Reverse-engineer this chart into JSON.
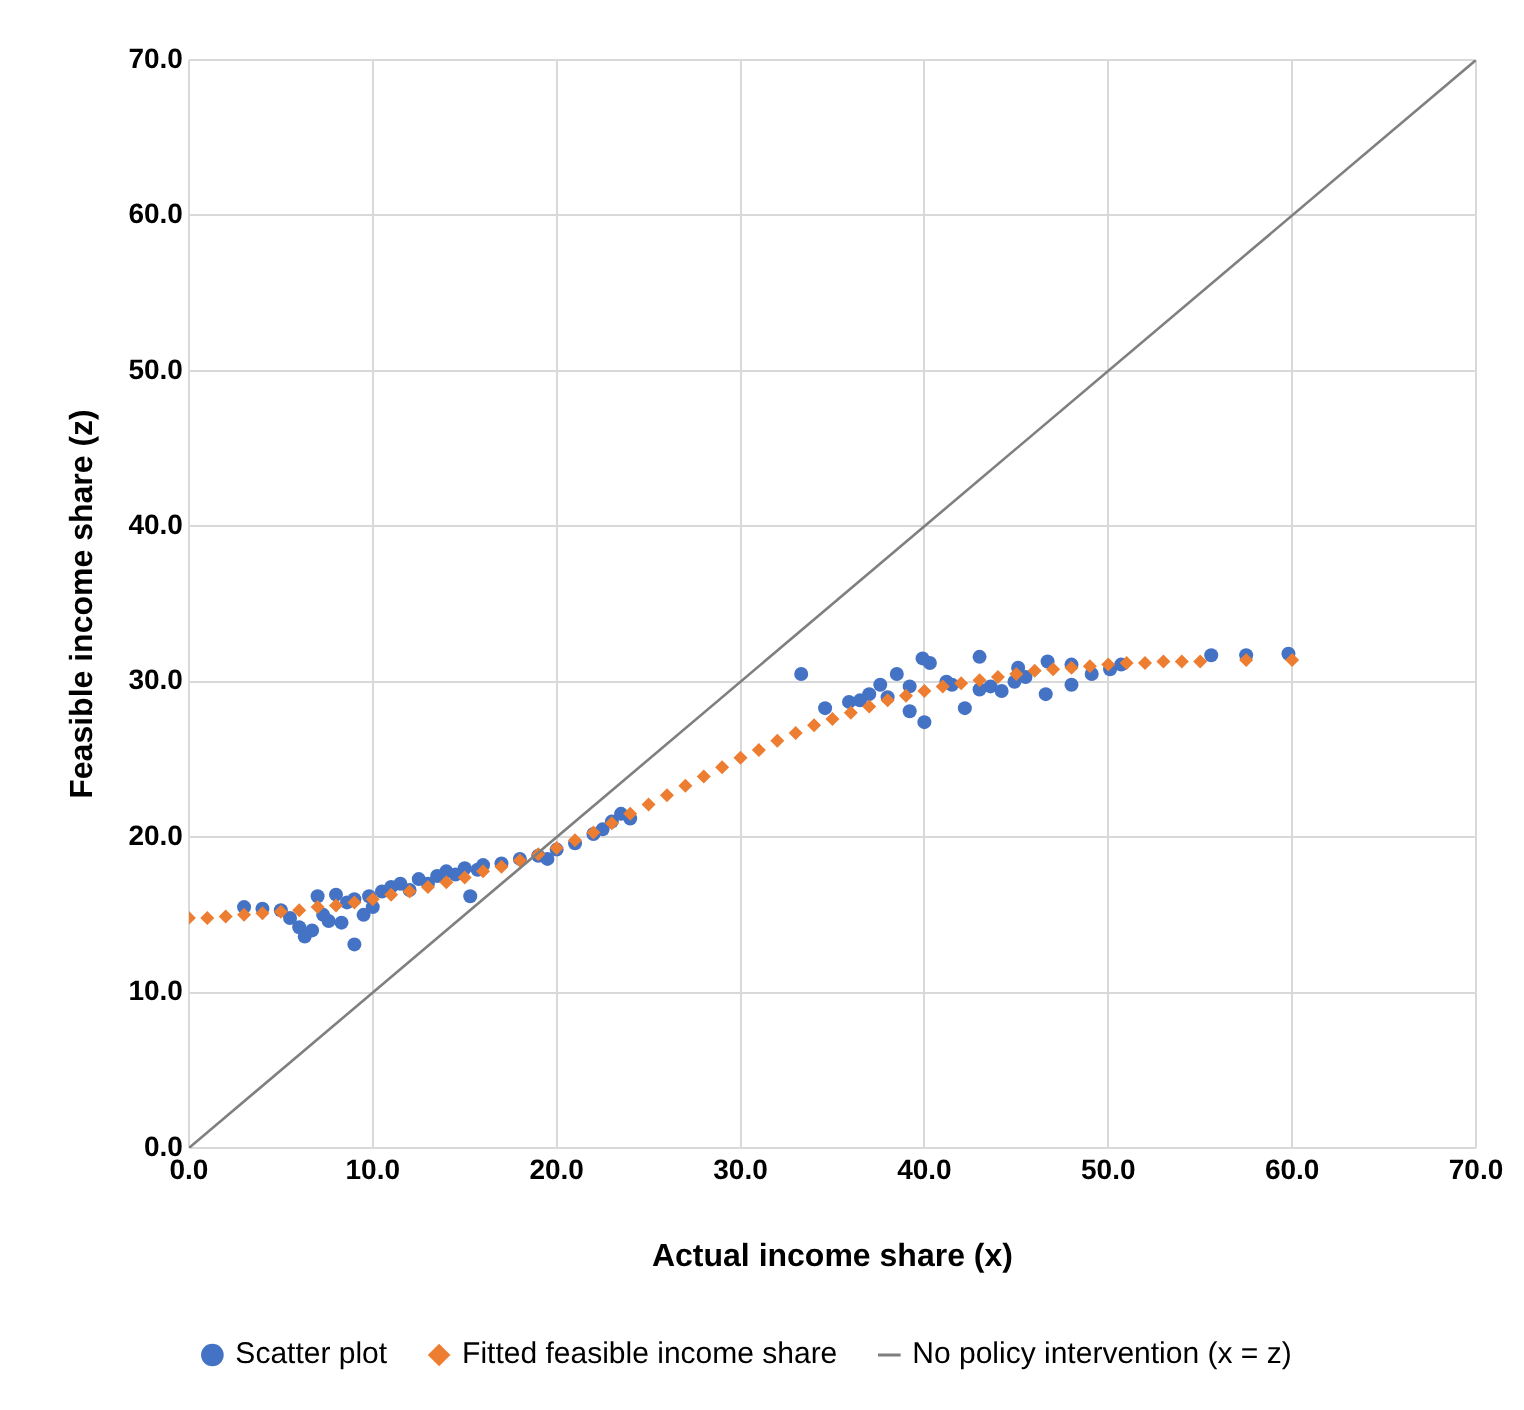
{
  "chart_data": {
    "type": "scatter",
    "xlabel": "Actual income share (x)",
    "ylabel": "Feasible income share (z)",
    "xlim": [
      0,
      70
    ],
    "ylim": [
      0,
      70
    ],
    "xticks": [
      {
        "value": 0,
        "label": "0.0"
      },
      {
        "value": 10,
        "label": "10.0"
      },
      {
        "value": 20,
        "label": "20.0"
      },
      {
        "value": 30,
        "label": "30.0"
      },
      {
        "value": 40,
        "label": "40.0"
      },
      {
        "value": 50,
        "label": "50.0"
      },
      {
        "value": 60,
        "label": "60.0"
      },
      {
        "value": 70,
        "label": "70.0"
      }
    ],
    "yticks": [
      {
        "value": 0,
        "label": "0.0"
      },
      {
        "value": 10,
        "label": "10.0"
      },
      {
        "value": 20,
        "label": "20.0"
      },
      {
        "value": 30,
        "label": "30.0"
      },
      {
        "value": 40,
        "label": "40.0"
      },
      {
        "value": 50,
        "label": "50.0"
      },
      {
        "value": 60,
        "label": "60.0"
      },
      {
        "value": 70,
        "label": "70.0"
      }
    ],
    "grid": true,
    "legend": "bottom",
    "series": [
      {
        "name": "Scatter plot",
        "type": "scatter",
        "marker": "circle",
        "color": "#4472c4",
        "x": [
          3,
          4,
          5,
          5.5,
          6,
          6.3,
          6.7,
          7,
          7.3,
          7.6,
          8,
          8.3,
          8.6,
          9,
          9,
          9.5,
          9.8,
          10,
          10.5,
          11,
          11.5,
          12,
          12.5,
          13,
          13.5,
          14,
          14.5,
          15,
          15.3,
          15.7,
          16,
          17,
          18,
          19,
          19.5,
          20,
          21,
          22,
          22.5,
          23,
          23.5,
          24,
          33.3,
          34.6,
          35.9,
          36.5,
          37,
          37.6,
          38,
          38.5,
          39.2,
          39.2,
          40,
          39.9,
          40.3,
          41.2,
          41.5,
          42.2,
          43,
          43,
          43.6,
          44.2,
          44.9,
          45.1,
          45.5,
          46.6,
          46.7,
          48,
          48,
          49.1,
          50.1,
          50.7,
          55.6,
          57.5,
          59.8
        ],
        "values": [
          15.5,
          15.4,
          15.3,
          14.8,
          14.2,
          13.6,
          14.0,
          16.2,
          15.0,
          14.6,
          16.3,
          14.5,
          15.8,
          16.0,
          13.1,
          15.0,
          16.2,
          15.5,
          16.5,
          16.8,
          17.0,
          16.6,
          17.3,
          17.0,
          17.5,
          17.8,
          17.6,
          18.0,
          16.2,
          17.9,
          18.2,
          18.3,
          18.6,
          18.8,
          18.6,
          19.2,
          19.6,
          20.2,
          20.5,
          21.0,
          21.5,
          21.2,
          30.5,
          28.3,
          28.7,
          28.8,
          29.2,
          29.8,
          29.0,
          30.5,
          29.7,
          28.1,
          27.4,
          31.5,
          31.2,
          30.0,
          29.8,
          28.3,
          31.6,
          29.5,
          29.7,
          29.4,
          30.0,
          30.9,
          30.3,
          29.2,
          31.3,
          31.1,
          29.8,
          30.5,
          30.8,
          31.1,
          31.7,
          31.7,
          31.8
        ]
      },
      {
        "name": "Fitted feasible income share",
        "type": "scatter",
        "marker": "diamond",
        "color": "#ed7d31",
        "x": [
          0,
          1,
          2,
          3,
          4,
          5,
          6,
          7,
          8,
          9,
          10,
          11,
          12,
          13,
          14,
          15,
          16,
          17,
          18,
          19,
          20,
          21,
          22,
          23,
          24,
          25,
          26,
          27,
          28,
          29,
          30,
          31,
          32,
          33,
          34,
          35,
          36,
          37,
          38,
          39,
          40,
          41,
          42,
          43,
          44,
          45,
          46,
          47,
          48,
          49,
          50,
          51,
          52,
          53,
          54,
          55,
          57.5,
          60
        ],
        "values": [
          14.8,
          14.8,
          14.9,
          15.0,
          15.1,
          15.2,
          15.3,
          15.5,
          15.6,
          15.8,
          16.0,
          16.3,
          16.5,
          16.8,
          17.1,
          17.4,
          17.8,
          18.1,
          18.5,
          18.9,
          19.3,
          19.8,
          20.3,
          20.9,
          21.5,
          22.1,
          22.7,
          23.3,
          23.9,
          24.5,
          25.1,
          25.6,
          26.2,
          26.7,
          27.2,
          27.6,
          28.0,
          28.4,
          28.8,
          29.1,
          29.4,
          29.7,
          29.9,
          30.1,
          30.3,
          30.5,
          30.7,
          30.8,
          30.9,
          31.0,
          31.1,
          31.2,
          31.2,
          31.3,
          31.3,
          31.3,
          31.4,
          31.4
        ]
      },
      {
        "name": "No policy intervention (x = z)",
        "type": "line",
        "marker": "none",
        "color": "#7f7f7f",
        "x": [
          0,
          70
        ],
        "values": [
          0,
          70
        ]
      }
    ]
  }
}
